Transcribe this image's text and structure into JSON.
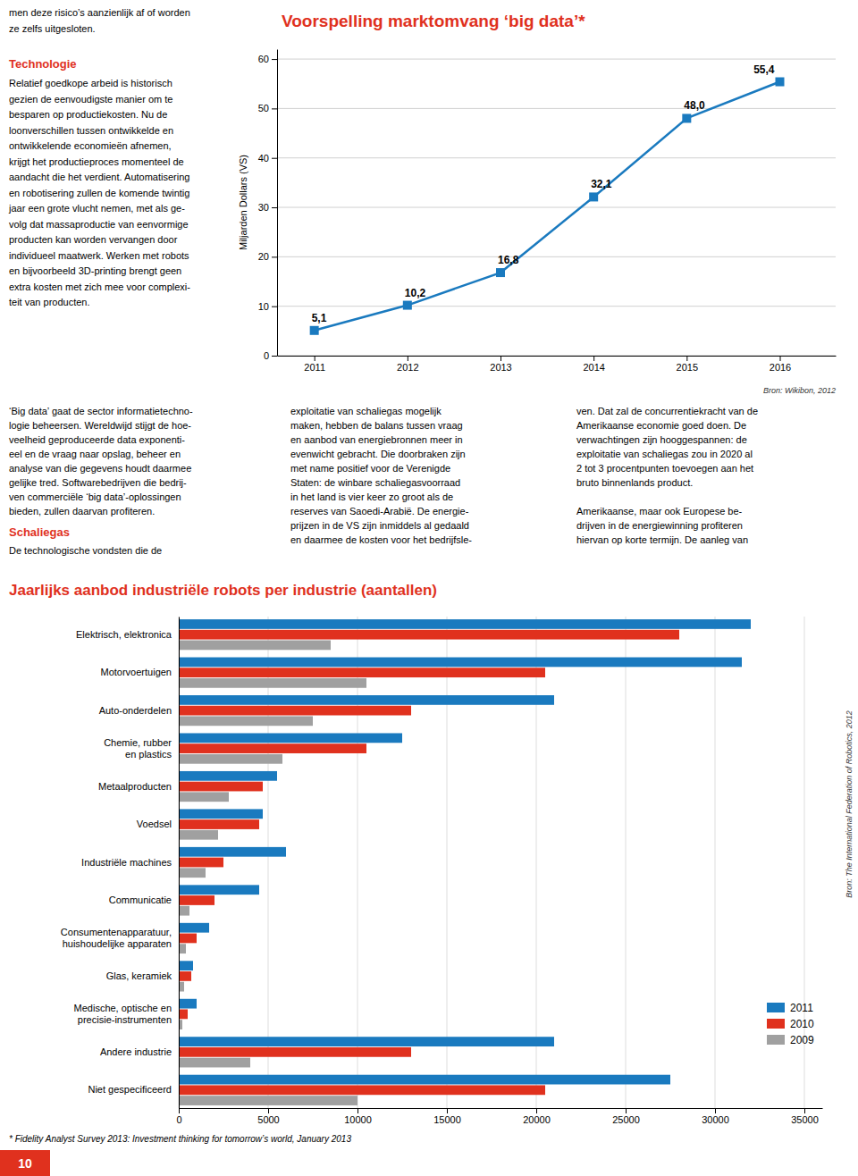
{
  "chart_data": [
    {
      "type": "line",
      "title": "Voorspelling marktomvang ‘big data’*",
      "x": [
        2011,
        2012,
        2013,
        2014,
        2015,
        2016
      ],
      "values": [
        5.1,
        10.2,
        16.8,
        32.1,
        48.0,
        55.4
      ],
      "value_labels": [
        "5,1",
        "10,2",
        "16,8",
        "32,1",
        "48,0",
        "55,4"
      ],
      "data_labels": true,
      "ylabel": "Miljarden Dollars (VS)",
      "xlim": [
        2010.6,
        2016.6
      ],
      "xticks": [
        2011,
        2012,
        2013,
        2014,
        2015,
        2016
      ],
      "ylim": [
        0,
        62
      ],
      "yticks": [
        0,
        10,
        20,
        30,
        40,
        50,
        60
      ],
      "color": "#1a7abf",
      "marker": "square",
      "grid": true,
      "source": "Bron: Wikibon, 2012"
    },
    {
      "type": "bar",
      "orientation": "horizontal",
      "title": "Jaarlijks aanbod industriële robots per industrie (aantallen)",
      "categories": [
        "Elektrisch, elektronica",
        "Motorvoertuigen",
        "Auto-onderdelen",
        "Chemie, rubber\nen plastics",
        "Metaalproducten",
        "Voedsel",
        "Industriële machines",
        "Communicatie",
        "Consumentenapparatuur,\nhuishoudelijke apparaten",
        "Glas, keramiek",
        "Medische, optische en\nprecisie-instrumenten",
        "Andere industrie",
        "Niet gespecificeerd"
      ],
      "series": [
        {
          "name": "2011",
          "color": "#1a7abf",
          "values": [
            32000,
            31500,
            21000,
            12500,
            5500,
            4700,
            6000,
            4500,
            1700,
            800,
            1000,
            21000,
            27500
          ]
        },
        {
          "name": "2010",
          "color": "#e0311e",
          "values": [
            28000,
            20500,
            13000,
            10500,
            4700,
            4500,
            2500,
            2000,
            1000,
            700,
            500,
            13000,
            20500
          ]
        },
        {
          "name": "2009",
          "color": "#a0a0a0",
          "values": [
            8500,
            10500,
            7500,
            5800,
            2800,
            2200,
            1500,
            600,
            400,
            300,
            200,
            4000,
            10000
          ]
        }
      ],
      "xlim": [
        0,
        36000
      ],
      "xticks": [
        0,
        5000,
        10000,
        15000,
        20000,
        25000,
        30000,
        35000
      ],
      "grid": true,
      "legend": "lower right",
      "source": "Bron: The International Federation of Robotics, 2012",
      "footnote": "* Fidelity Analyst Survey 2013: Investment thinking for tomorrow’s world, January 2013"
    }
  ],
  "texts": {
    "color": "#e0311e",
    "top_line1": "men deze risico’s aanzienlijk af of worden",
    "top_line2": "ze zelfs uitgesloten.",
    "tech_heading": "Technologie",
    "tech_body": "Relatief goedkope arbeid is historisch\ngezien de eenvoudigste manier om te\nbesparen op productiekosten. Nu de\nloonverschillen tussen ontwikkelde en\nontwikkelende economieën afnemen,\nkrijgt het productieproces momenteel de\naandacht die het verdient. Automatisering\nen robotisering zullen de komende twintig\njaar een grote vlucht nemen, met als ge-\nvolg dat massaproductie van eenvormige\nproducten kan worden vervangen door\nindividueel maatwerk. Werken met robots\nen bijvoorbeeld 3D-printing brengt geen\nextra kosten met zich mee voor complexi-\nteit van producten.",
    "mid_col1": "‘Big data’ gaat de sector informatietechno-\nlogie beheersen. Wereldwijd stijgt de hoe-\nveelheid geproduceerde data exponenti-\neel en de vraag naar opslag, beheer en\nanalyse van die gegevens houdt daarmee\ngelijke tred. Softwarebedrijven die bedrij-\nven commerciële ‘big data’-oplossingen\nbieden, zullen daarvan profiteren.",
    "schaliegas_heading": "Schaliegas",
    "schaliegas_body": "De technologische vondsten die de",
    "mid_col2": "exploitatie van schaliegas mogelijk\nmaken, hebben de balans tussen vraag\nen aanbod van energiebronnen meer in\nevenwicht gebracht. Die doorbraken zijn\nmet name positief voor de Verenigde\nStaten: de winbare schaliegasvoorraad\nin het land is vier keer zo groot als de\nreserves van Saoedi-Arabië. De energie-\nprijzen in de VS zijn inmiddels al gedaald\nen daarmee de kosten voor het bedrijfsle-",
    "mid_col3": "ven. Dat zal de concurrentiekracht van de\nAmerikaanse economie goed doen. De\nverwachtingen zijn hooggespannen: de\nexploitatie van schaliegas zou in 2020 al\n2 tot 3 procentpunten toevoegen aan het\nbruto binnenlands product.\n\nAmerikaanse, maar ook Europese be-\ndrijven in de energiewinning profiteren\nhiervan op korte termijn. De aanleg van",
    "page_number": "10"
  }
}
